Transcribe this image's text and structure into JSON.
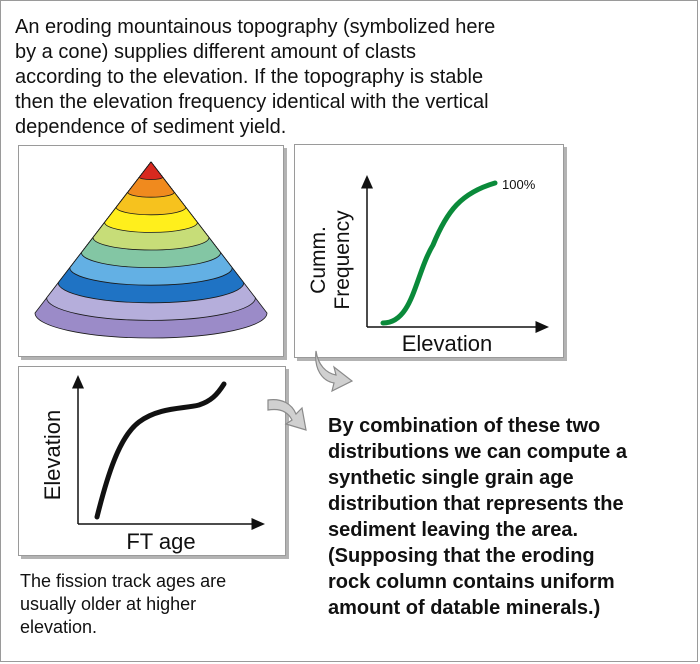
{
  "intro": {
    "line1": "An eroding mountainous topography (symbolized here",
    "line2": "by a cone) supplies different amount of clasts",
    "line3": "according to the elevation. If the topography is stable",
    "line4": "then the elevation frequency identical with the vertical",
    "line5": "dependence of sediment yield."
  },
  "cone": {
    "band_colors": [
      "#9b8bc8",
      "#b5aedb",
      "#1f73c4",
      "#63b0e4",
      "#83c6a4",
      "#c7dd78",
      "#ffef1c",
      "#f6c21e",
      "#f08a1e",
      "#d8291f"
    ]
  },
  "cdf_plot": {
    "ylabel_line1": "Cumm.",
    "ylabel_line2": "Frequency",
    "xlabel": "Elevation",
    "annotation": "100%",
    "curve_color": "#0a8a3a"
  },
  "ft_plot": {
    "ylabel": "Elevation",
    "xlabel": "FT age",
    "curve_color": "#111111"
  },
  "conclusion": {
    "line1": "By combination of these two",
    "line2": "distributions we can compute a",
    "line3": "synthetic single grain age",
    "line4": "distribution that represents the",
    "line5": "sediment leaving the area.",
    "line6": "(Supposing that the eroding",
    "line7": "rock column contains uniform",
    "line8": "amount of datable minerals.)"
  },
  "footnote": {
    "line1": "The fission track ages are",
    "line2": "usually older at higher",
    "line3": "elevation."
  }
}
